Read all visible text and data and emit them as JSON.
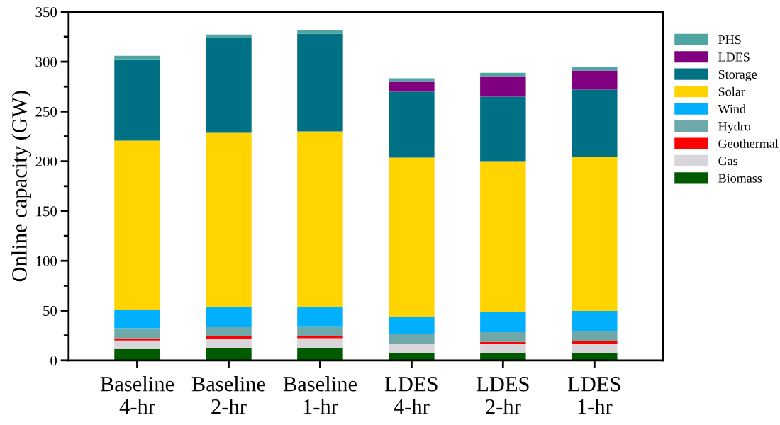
{
  "chart_data": {
    "type": "bar",
    "stacked": true,
    "ylabel": "Online capacity (GW)",
    "categories": [
      "Baseline\n4-hr",
      "Baseline\n2-hr",
      "Baseline\n1-hr",
      "LDES\n4-hr",
      "LDES\n2-hr",
      "LDES\n1-hr"
    ],
    "series": [
      {
        "name": "Biomass",
        "color": "#005a00",
        "values": [
          11.4,
          12.8,
          12.8,
          7.1,
          7.1,
          7.8
        ]
      },
      {
        "name": "Gas",
        "color": "#d9d6db",
        "values": [
          8.5,
          8.5,
          9.4,
          9.2,
          9.2,
          8.5
        ]
      },
      {
        "name": "Geothermal",
        "color": "#ff0000",
        "values": [
          2.3,
          2.8,
          1.9,
          0,
          2.2,
          2.9
        ]
      },
      {
        "name": "Hydro",
        "color": "#6fa8a8",
        "values": [
          10,
          9.5,
          10,
          10,
          9.9,
          9.9
        ]
      },
      {
        "name": "Wind",
        "color": "#00b0ff",
        "values": [
          18.9,
          19.9,
          19.4,
          17.7,
          20.6,
          20.6
        ]
      },
      {
        "name": "Solar",
        "color": "#ffd400",
        "values": [
          169.7,
          175.1,
          176.5,
          159.7,
          151.2,
          154.8
        ]
      },
      {
        "name": "Storage",
        "color": "#007185",
        "values": [
          81.6,
          95.1,
          98,
          66.1,
          64.6,
          67.4
        ]
      },
      {
        "name": "LDES",
        "color": "#800080",
        "values": [
          0,
          0,
          0,
          9.9,
          20.6,
          19.2
        ]
      },
      {
        "name": "PHS",
        "color": "#4ea6a3",
        "values": [
          3.6,
          3.6,
          3.5,
          3.6,
          3.5,
          3.5
        ]
      }
    ],
    "ylim": [
      0,
      350
    ],
    "yticks": [
      0,
      {
        "value": 25,
        "label": null
      },
      50,
      {
        "value": 75,
        "label": null
      },
      100,
      {
        "value": 125,
        "label": null
      },
      150,
      {
        "value": 175,
        "label": null
      },
      200,
      {
        "value": 225,
        "label": null
      },
      250,
      {
        "value": 275,
        "label": null
      },
      300,
      {
        "value": 325,
        "label": null
      },
      350
    ],
    "grid": false,
    "legend": "right"
  }
}
